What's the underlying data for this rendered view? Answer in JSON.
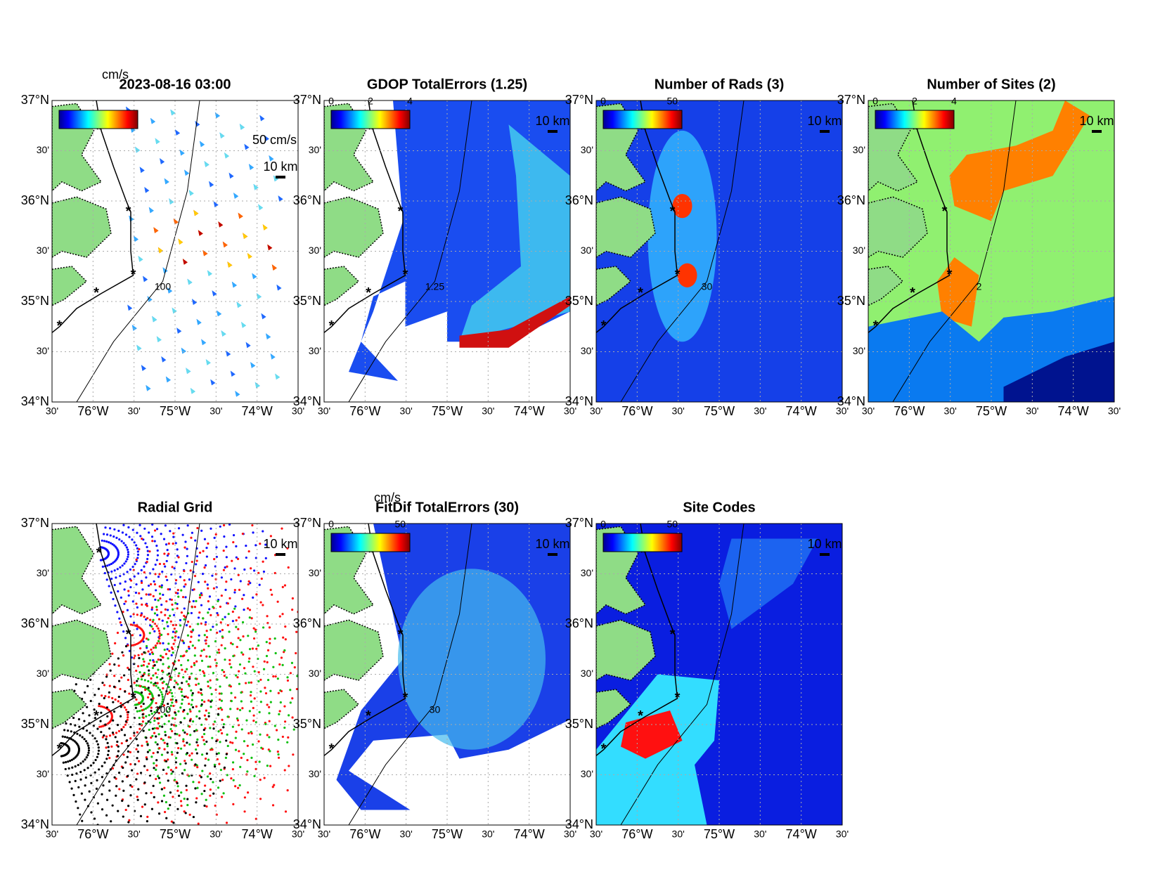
{
  "axes": {
    "lat_labels": [
      "37°N",
      "30'",
      "36°N",
      "30'",
      "35°N",
      "30'",
      "34°N"
    ],
    "lon_labels": [
      "30'",
      "76°W",
      "30'",
      "75°W",
      "30'",
      "74°W",
      "30'"
    ]
  },
  "panels": [
    {
      "title": "2023-08-16 03:00",
      "unit": "cm/s",
      "vector_scale": "50 cm/s",
      "scale_label": "10 km",
      "contour_label": "100"
    },
    {
      "title": "GDOP TotalErrors (1.25)",
      "colorbar_ticks": [
        0,
        2,
        4
      ],
      "clim": [
        0,
        4
      ],
      "scale_label": "10 km",
      "contour_label": "1.25"
    },
    {
      "title": "Number of Rads (3)",
      "colorbar_ticks": [
        0,
        50
      ],
      "clim": [
        0,
        57
      ],
      "scale_label": "10 km",
      "contour_label": "30"
    },
    {
      "title": "Number of Sites (2)",
      "colorbar_ticks": [
        0,
        2,
        4
      ],
      "clim": [
        0,
        4
      ],
      "scale_label": "10 km",
      "contour_label": "2"
    },
    {
      "title": "Radial Grid",
      "scale_label": "10 km",
      "contour_label": "100"
    },
    {
      "title": "FitDif TotalErrors (30)",
      "unit": "cm/s",
      "colorbar_ticks": [
        0,
        50
      ],
      "clim": [
        0,
        57
      ],
      "scale_label": "10 km",
      "contour_label": "30"
    },
    {
      "title": "Site Codes",
      "colorbar_ticks": [
        0,
        50
      ],
      "clim": [
        0,
        57
      ],
      "scale_label": "10 km"
    }
  ]
}
